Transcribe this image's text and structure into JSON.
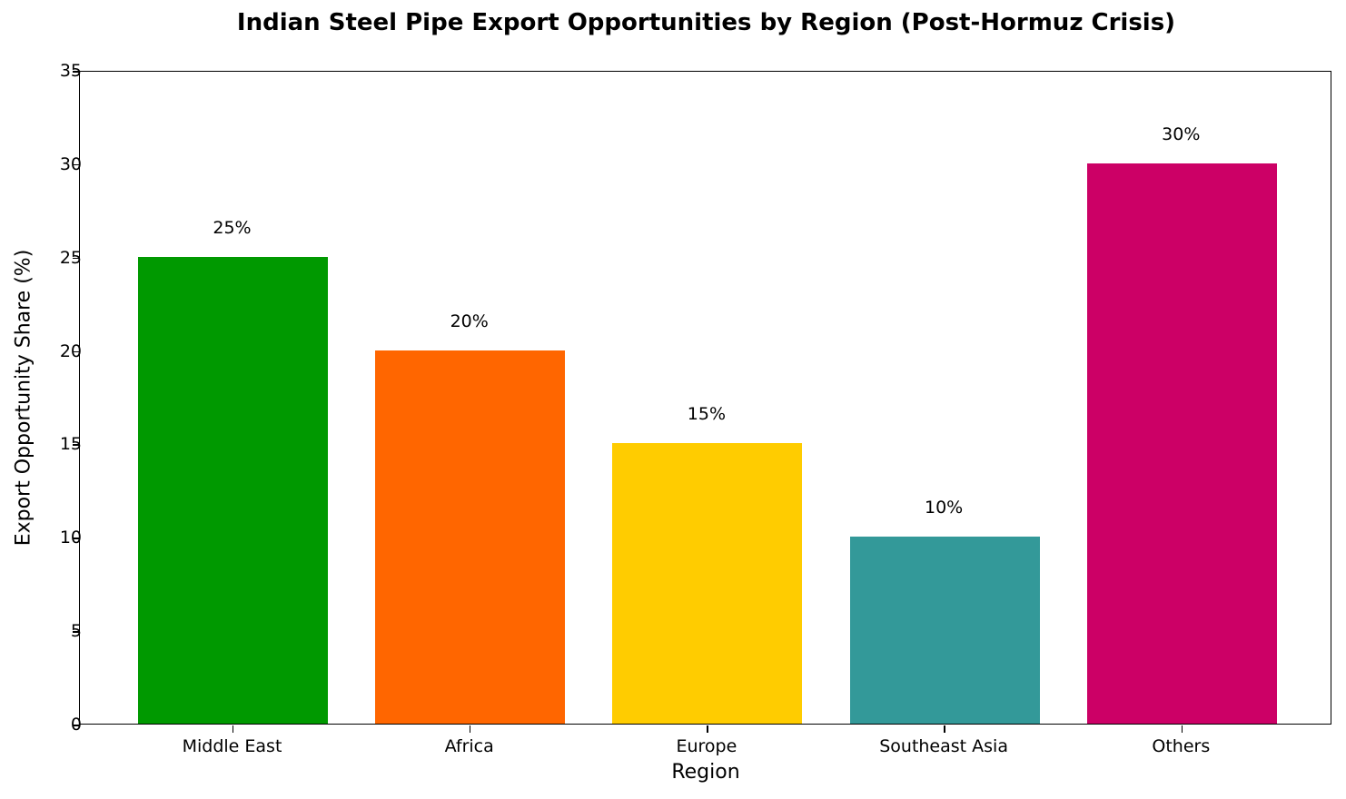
{
  "chart_data": {
    "type": "bar",
    "title": "Indian Steel Pipe Export Opportunities by Region (Post-Hormuz Crisis)",
    "xlabel": "Region",
    "ylabel": "Export Opportunity Share (%)",
    "categories": [
      "Middle East",
      "Africa",
      "Europe",
      "Southeast Asia",
      "Others"
    ],
    "values": [
      25,
      20,
      15,
      10,
      30
    ],
    "data_labels": [
      "25%",
      "20%",
      "15%",
      "10%",
      "30%"
    ],
    "colors": [
      "#009900",
      "#FF6600",
      "#FFCC00",
      "#339999",
      "#CC0066"
    ],
    "ylim": [
      0,
      35
    ],
    "yticks": [
      "0",
      "5",
      "10",
      "15",
      "20",
      "25",
      "30",
      "35"
    ],
    "grid": false,
    "legend": null
  }
}
